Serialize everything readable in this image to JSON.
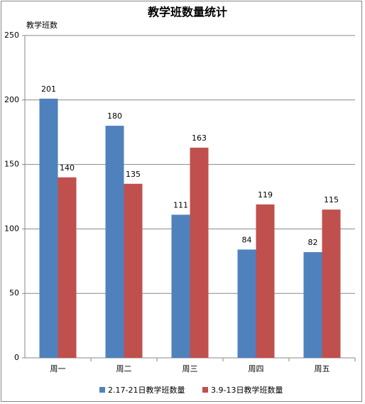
{
  "chart_data": {
    "type": "bar",
    "title": "教学班数量统计",
    "y_label": "教学班数",
    "categories": [
      "周一",
      "周二",
      "周三",
      "周四",
      "周五"
    ],
    "series": [
      {
        "name": "2.17-21日教学班数量",
        "color": "#4f81bd",
        "values": [
          201,
          180,
          111,
          84,
          82
        ]
      },
      {
        "name": "3.9-13日教学班数量",
        "color": "#c0504d",
        "values": [
          140,
          135,
          163,
          119,
          115
        ]
      }
    ],
    "ylim": [
      0,
      250
    ],
    "yticks": [
      0,
      50,
      100,
      150,
      200,
      250
    ],
    "grid": true,
    "legend": "bottom"
  }
}
